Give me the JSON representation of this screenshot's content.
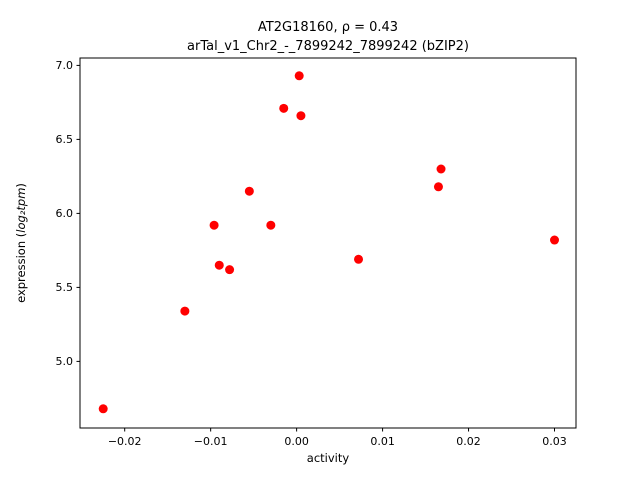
{
  "figure": {
    "title_line1": "AT2G18160, ρ = 0.43",
    "title_line2": "arTal_v1_Chr2_-_7899242_7899242 (bZIP2)",
    "xlabel": "activity",
    "ylabel_prefix": "expression (",
    "ylabel_math": "log₂tpm",
    "ylabel_suffix": ")"
  },
  "chart_data": {
    "type": "scatter",
    "title": "AT2G18160, ρ = 0.43\narTal_v1_Chr2_-_7899242_7899242 (bZIP2)",
    "xlabel": "activity",
    "ylabel": "expression (log2tpm)",
    "marker_color": "#ff0000",
    "frame_color": "#000000",
    "grid": false,
    "legend": false,
    "xlim": [
      -0.0252,
      0.0325
    ],
    "ylim": [
      4.55,
      7.05
    ],
    "xticks": [
      -0.02,
      -0.01,
      0.0,
      0.01,
      0.02,
      0.03
    ],
    "yticks": [
      5.0,
      5.5,
      6.0,
      6.5,
      7.0
    ],
    "points": [
      [
        -0.0225,
        4.68
      ],
      [
        -0.013,
        5.34
      ],
      [
        -0.0096,
        5.92
      ],
      [
        -0.009,
        5.65
      ],
      [
        -0.0078,
        5.62
      ],
      [
        -0.0055,
        6.15
      ],
      [
        -0.003,
        5.92
      ],
      [
        -0.0015,
        6.71
      ],
      [
        0.0003,
        6.93
      ],
      [
        0.0005,
        6.66
      ],
      [
        0.0072,
        5.69
      ],
      [
        0.0165,
        6.18
      ],
      [
        0.0168,
        6.3
      ],
      [
        0.03,
        5.82
      ]
    ]
  }
}
